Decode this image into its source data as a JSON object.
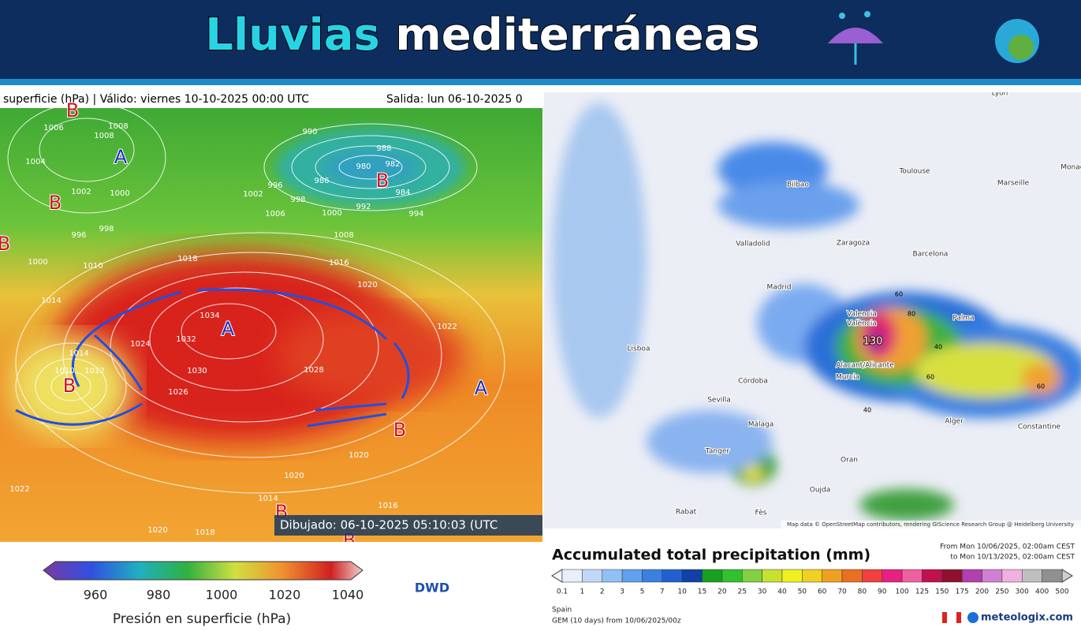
{
  "header": {
    "title_part1": "Lluvias",
    "title_part2": "mediterráneas"
  },
  "pressure_map": {
    "valid_text": "superficie (hPa) | Válido: viernes 10-10-2025 00:00 UTC",
    "run_text": "Salida: lun 06-10-2025 0",
    "isobar_labels": [
      "1006",
      "1008",
      "1008",
      "1004",
      "1002",
      "1000",
      "996",
      "998",
      "990",
      "988",
      "980",
      "982",
      "986",
      "984",
      "992",
      "994",
      "996",
      "998",
      "1002",
      "1006",
      "1000",
      "1008",
      "1018",
      "1016",
      "1020",
      "1010",
      "1000",
      "1014",
      "1034",
      "1032",
      "1030",
      "1026",
      "1024",
      "1022",
      "1028",
      "1014",
      "1012",
      "1010",
      "1020",
      "1022",
      "1014",
      "1018",
      "1016",
      "1020",
      "1020"
    ],
    "centers": [
      "B",
      "A",
      "B",
      "B",
      "B",
      "A",
      "B",
      "A",
      "B",
      "B",
      "B"
    ],
    "drawn_text": "Dibujado: 06-10-2025 05:10:03 (UTC",
    "colorbar_ticks": [
      "960",
      "980",
      "1000",
      "1020",
      "1040"
    ],
    "colorbar_label": "Presión en superficie (hPa)",
    "source": "DWD"
  },
  "precipitation_map": {
    "places": [
      "Lyon",
      "Toulouse",
      "Marseille",
      "Monac",
      "Bilbao",
      "Valladolid",
      "Zaragoza",
      "Barcelona",
      "Madrid",
      "Lisboa",
      "Valencia",
      "València",
      "Palma",
      "Alacant/Alicante",
      "Murcia",
      "Córdoba",
      "Sevilla",
      "Málaga",
      "Tanger",
      "Alger",
      "Oran",
      "Constantine",
      "Rabat",
      "Fès",
      "Oujda"
    ],
    "max_label": "130",
    "contour_labels": [
      "60",
      "80",
      "40",
      "60",
      "40",
      "60"
    ],
    "credit": "Map data © OpenStreetMap contributors, rendering GIScience Research Group @ Heidelberg University",
    "title": "Accumulated total precipitation (mm)",
    "period_from": "From Mon 10/06/2025, 02:00am CEST",
    "period_to": "to Mon 10/13/2025, 02:00am CEST",
    "colorbar_ticks": [
      "0.1",
      "1",
      "2",
      "3",
      "5",
      "7",
      "10",
      "15",
      "20",
      "25",
      "30",
      "40",
      "50",
      "60",
      "70",
      "80",
      "90",
      "100",
      "125",
      "150",
      "175",
      "200",
      "250",
      "300",
      "400",
      "500"
    ],
    "region": "Spain",
    "model": "GEM (10 days) from 10/06/2025/00z",
    "brand": "meteologix.com"
  }
}
